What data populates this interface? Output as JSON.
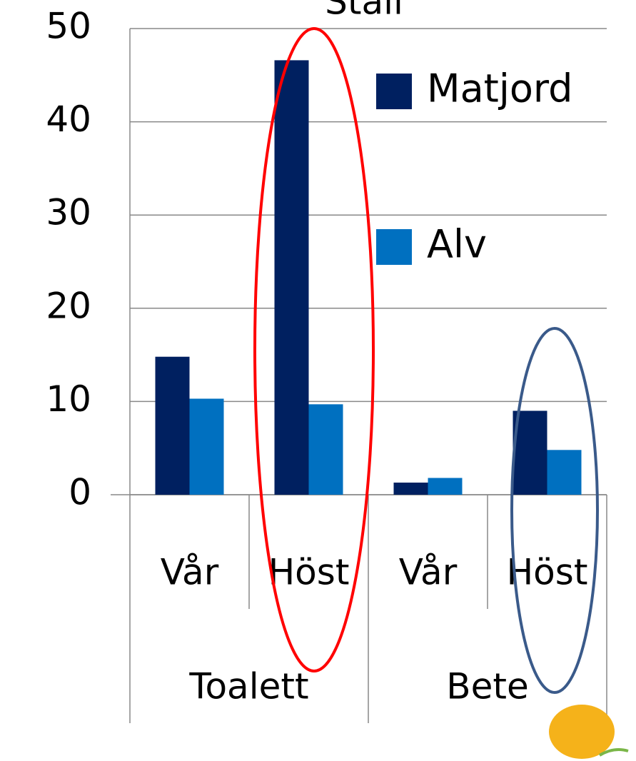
{
  "chart_data": {
    "type": "bar",
    "title": "Stall",
    "groups": [
      "Toalett",
      "Bete"
    ],
    "categories": [
      "Vår",
      "Höst",
      "Vår",
      "Höst"
    ],
    "series": [
      {
        "name": "Matjord",
        "color": "#002060",
        "values": [
          14.8,
          46.6,
          1.3,
          9.0
        ]
      },
      {
        "name": "Alv",
        "color": "#0070c0",
        "values": [
          10.3,
          9.7,
          1.8,
          4.8
        ]
      }
    ],
    "ylim": [
      0,
      50
    ],
    "yticks": [
      0,
      10,
      20,
      30,
      40,
      50
    ],
    "grid": true
  }
}
